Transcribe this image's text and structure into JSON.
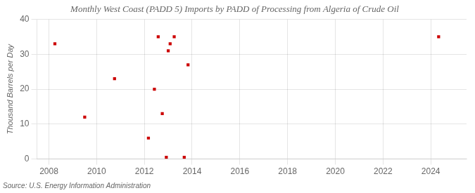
{
  "chart_data": {
    "type": "scatter",
    "title": "Monthly West Coast (PADD 5) Imports by PADD of Processing from Algeria of Crude Oil",
    "ylabel": "Thousand Barrels per Day",
    "annotation": "Source: U.S. Energy Information Administration",
    "x": [
      2008.25,
      2009.5,
      2010.75,
      2012.17,
      2012.42,
      2012.58,
      2012.75,
      2012.92,
      2013.0,
      2013.08,
      2013.25,
      2013.67,
      2013.83,
      2024.33
    ],
    "values": [
      33,
      12,
      23,
      6,
      20,
      35,
      13,
      0.5,
      31,
      33,
      35,
      0.5,
      27,
      35
    ],
    "color": "#cc0000",
    "marker": "square",
    "xlim": [
      2007.5,
      2025.5
    ],
    "ylim": [
      0,
      40
    ],
    "xticks": [
      2008,
      2010,
      2012,
      2014,
      2016,
      2018,
      2020,
      2022,
      2024
    ],
    "yticks": [
      0,
      10,
      20,
      30,
      40
    ],
    "grid": true
  }
}
